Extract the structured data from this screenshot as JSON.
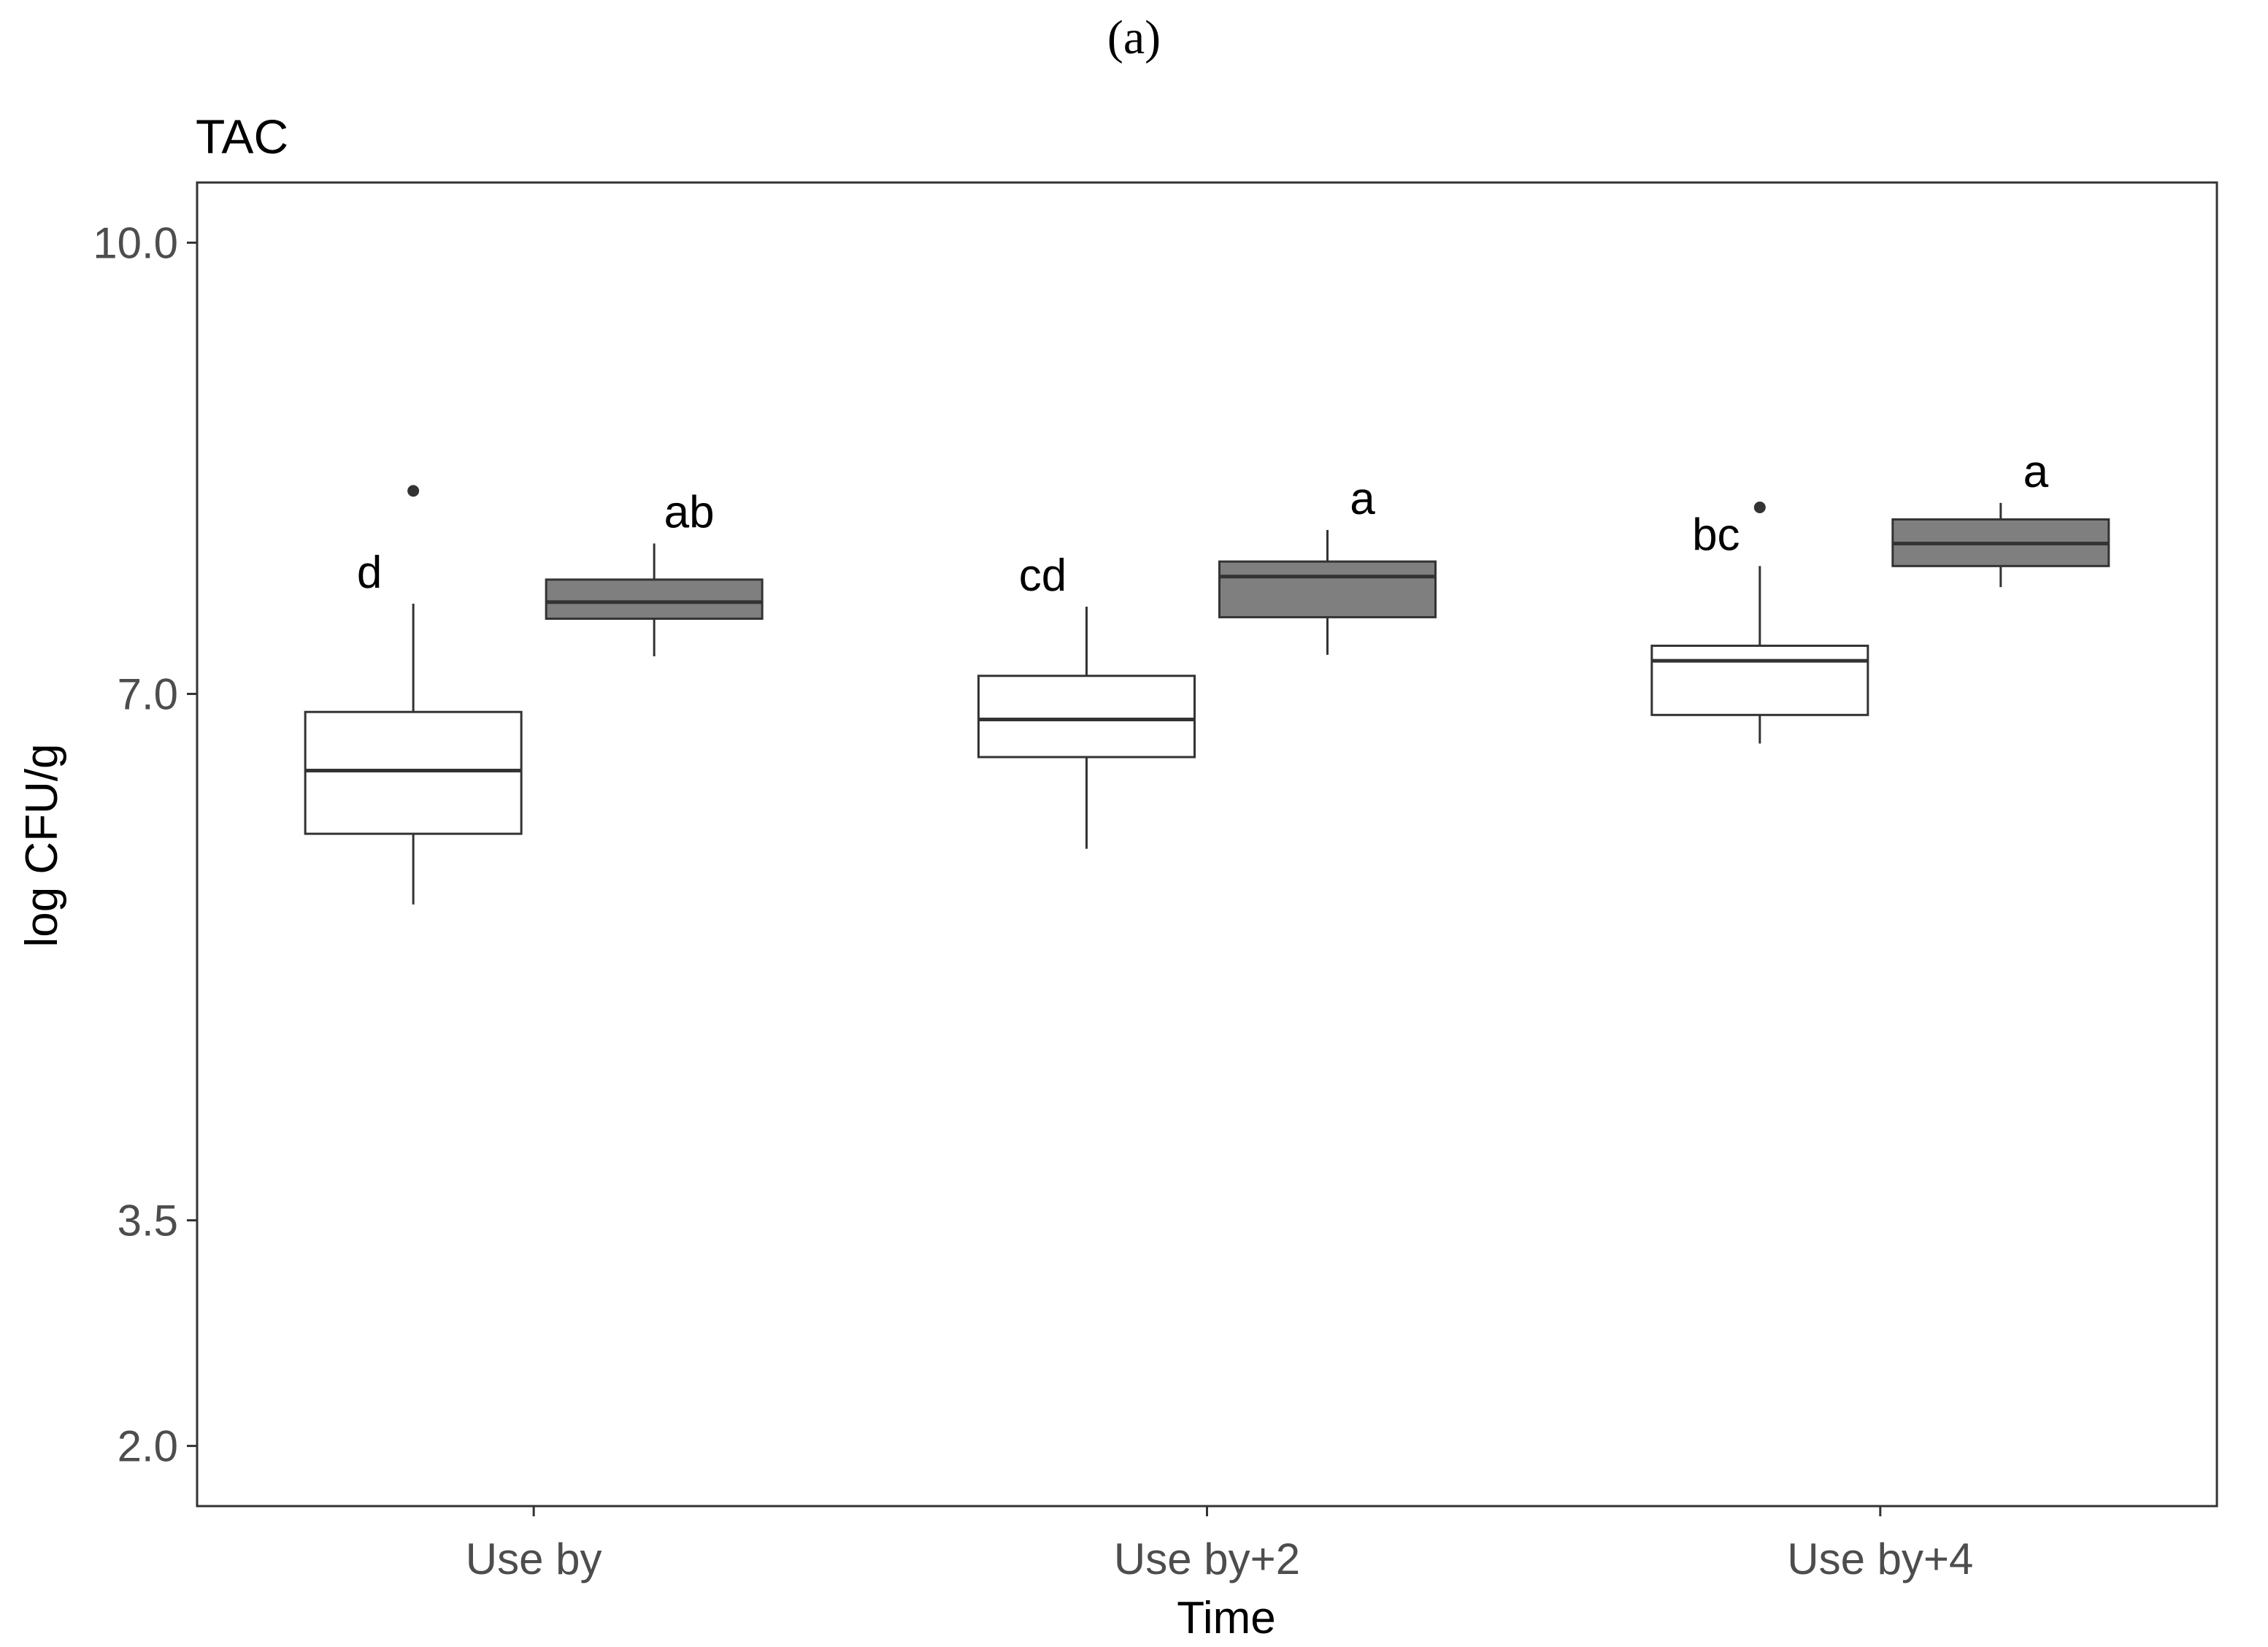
{
  "figure": {
    "panel_label": "(a)"
  },
  "chart_data": {
    "type": "box",
    "title": "TAC",
    "xlabel": "Time",
    "ylabel": "log CFU/g",
    "categories": [
      "Use by",
      "Use by+2",
      "Use by+4"
    ],
    "ylim": [
      1.6,
      10.4
    ],
    "yticks": [
      2.0,
      3.5,
      7.0,
      10.0
    ],
    "ytick_labels": [
      "2.0",
      "3.5",
      "7.0",
      "10.0"
    ],
    "grid": false,
    "legend": "none",
    "colors": {
      "box_light": "#ffffff",
      "box_dark": "#7f7f7f",
      "stroke": "#333333",
      "frame": "#333333"
    },
    "series": [
      {
        "fill": "#ffffff",
        "boxes": [
          {
            "category": "Use by",
            "min": 5.6,
            "q1": 6.07,
            "median": 6.49,
            "q3": 6.88,
            "max": 7.6,
            "outliers": [
              8.35
            ],
            "letter": "d"
          },
          {
            "category": "Use by+2",
            "min": 5.97,
            "q1": 6.58,
            "median": 6.83,
            "q3": 7.12,
            "max": 7.58,
            "outliers": [],
            "letter": "cd"
          },
          {
            "category": "Use by+4",
            "min": 6.67,
            "q1": 6.86,
            "median": 7.22,
            "q3": 7.32,
            "max": 7.85,
            "outliers": [
              8.24
            ],
            "letter": "bc"
          }
        ]
      },
      {
        "fill": "#7f7f7f",
        "boxes": [
          {
            "category": "Use by",
            "min": 7.25,
            "q1": 7.5,
            "median": 7.61,
            "q3": 7.76,
            "max": 8.0,
            "outliers": [],
            "letter": "ab"
          },
          {
            "category": "Use by+2",
            "min": 7.26,
            "q1": 7.51,
            "median": 7.78,
            "q3": 7.88,
            "max": 8.09,
            "outliers": [],
            "letter": "a"
          },
          {
            "category": "Use by+4",
            "min": 7.71,
            "q1": 7.85,
            "median": 8.0,
            "q3": 8.16,
            "max": 8.27,
            "outliers": [],
            "letter": "a"
          }
        ]
      }
    ]
  }
}
